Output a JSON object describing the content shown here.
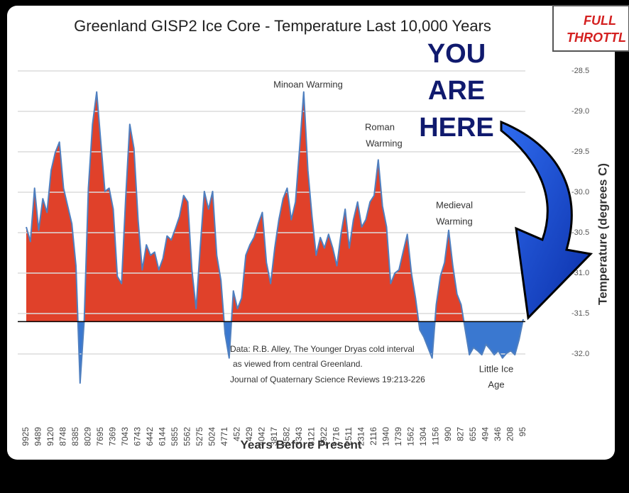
{
  "chart_data": {
    "type": "area",
    "title": "Greenland GISP2 Ice Core - Temperature  Last 10,000 Years",
    "x_label": "Years Before Present",
    "y_label": "Temperature (degrees C)",
    "categories": [
      "9925",
      null,
      null,
      "9489",
      null,
      null,
      "9120",
      null,
      null,
      "8748",
      null,
      null,
      "8385",
      null,
      null,
      "8029",
      null,
      null,
      "7695",
      null,
      null,
      "7369",
      null,
      null,
      "7043",
      null,
      null,
      "6743",
      null,
      null,
      "6442",
      null,
      null,
      "6144",
      null,
      null,
      "5855",
      null,
      null,
      "5562",
      null,
      null,
      "5275",
      null,
      null,
      "5024",
      null,
      null,
      "4771",
      null,
      null,
      "452",
      null,
      null,
      "429",
      null,
      null,
      "4042",
      null,
      null,
      "3817",
      null,
      null,
      "3582",
      null,
      null,
      "3343",
      null,
      null,
      "3121",
      null,
      null,
      "2922",
      null,
      null,
      "2716",
      null,
      null,
      "2511",
      null,
      null,
      "2314",
      null,
      null,
      "2116",
      null,
      null,
      "1940",
      null,
      null,
      "1739",
      null,
      null,
      "1562",
      null,
      null,
      "1304",
      null,
      null,
      "1156",
      null,
      null,
      "990",
      null,
      null,
      "827",
      null,
      null,
      "655",
      null,
      null,
      "494",
      null,
      null,
      "346",
      null,
      null,
      "208",
      null,
      null,
      "95"
    ],
    "values": [
      -30.43,
      -30.61,
      -29.95,
      -30.47,
      -30.08,
      -30.25,
      -29.73,
      -29.51,
      -29.38,
      -29.95,
      -30.17,
      -30.39,
      -30.91,
      -32.36,
      -31.57,
      -29.95,
      -29.16,
      -28.76,
      -29.38,
      -29.99,
      -29.95,
      -30.21,
      -31.04,
      -31.13,
      -30.08,
      -29.16,
      -29.46,
      -30.34,
      -30.96,
      -30.65,
      -30.78,
      -30.74,
      -30.96,
      -30.82,
      -30.54,
      -30.59,
      -30.45,
      -30.3,
      -30.04,
      -30.12,
      -30.96,
      -31.44,
      -30.69,
      -29.99,
      -30.21,
      -29.99,
      -30.78,
      -31.09,
      -31.75,
      -32.05,
      -31.22,
      -31.44,
      -31.31,
      -30.78,
      -30.65,
      -30.56,
      -30.39,
      -30.25,
      -30.87,
      -31.13,
      -30.69,
      -30.34,
      -30.08,
      -29.95,
      -30.34,
      -30.12,
      -29.46,
      -28.76,
      -29.73,
      -30.3,
      -30.78,
      -30.56,
      -30.69,
      -30.52,
      -30.69,
      -30.91,
      -30.52,
      -30.21,
      -30.69,
      -30.34,
      -30.12,
      -30.43,
      -30.34,
      -30.12,
      -30.04,
      -29.6,
      -30.17,
      -30.43,
      -31.13,
      -31.0,
      -30.96,
      -30.74,
      -30.52,
      -31.0,
      -31.31,
      -31.7,
      -31.79,
      -31.92,
      -32.05,
      -31.39,
      -31.04,
      -30.87,
      -30.47,
      -30.91,
      -31.26,
      -31.39,
      -31.7,
      -32.01,
      -31.92,
      -31.96,
      -32.01,
      -31.88,
      -31.94,
      -32.01,
      -31.96,
      -32.05,
      -31.99,
      -31.96,
      -32.01,
      -31.82,
      -31.57
    ],
    "baseline": -31.6,
    "fill_above": "#e0412a",
    "fill_below": "#3a78d0",
    "line_color": "#4f7fbf",
    "ylim": [
      -32.5,
      -28.5
    ],
    "yticks": [
      -28.5,
      {
        "value": -29,
        "label": "-29.0"
      },
      -29.5,
      {
        "value": -30,
        "label": "-30.0"
      },
      -30.5,
      {
        "value": -31,
        "label": "-31.0"
      },
      -31.5,
      {
        "value": -32,
        "label": "-32.0"
      }
    ],
    "grid": true,
    "annotations": {
      "minoan": [
        "Minoan Warming"
      ],
      "roman": [
        "Roman",
        "Warming"
      ],
      "medieval": [
        "Medieval",
        "Warming"
      ],
      "little_ice_age": [
        "Little Ice",
        "Age"
      ],
      "you_are_here": [
        "YOU",
        "ARE",
        "HERE"
      ],
      "source": [
        "Data: R.B. Alley,  The Younger Dryas cold interval",
        "as viewed from central Greenland.",
        "Journal of Quaternary  Science Reviews 19:213-226"
      ]
    }
  },
  "logo": [
    "FULL",
    "THROTTL"
  ]
}
